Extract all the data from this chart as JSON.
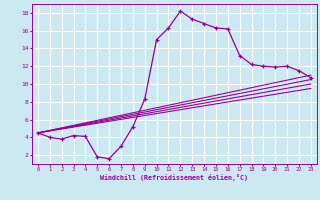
{
  "xlabel": "Windchill (Refroidissement éolien,°C)",
  "bg_color": "#cce8f0",
  "grid_color": "#ffffff",
  "line_color": "#990099",
  "xlim": [
    -0.5,
    23.5
  ],
  "ylim": [
    1,
    19
  ],
  "xticks": [
    0,
    1,
    2,
    3,
    4,
    5,
    6,
    7,
    8,
    9,
    10,
    11,
    12,
    13,
    14,
    15,
    16,
    17,
    18,
    19,
    20,
    21,
    22,
    23
  ],
  "yticks": [
    2,
    4,
    6,
    8,
    10,
    12,
    14,
    16,
    18
  ],
  "main_x": [
    0,
    1,
    2,
    3,
    4,
    5,
    6,
    7,
    8,
    9,
    10,
    11,
    12,
    13,
    14,
    15,
    16,
    17,
    18,
    19,
    20,
    21,
    22,
    23
  ],
  "main_y": [
    4.5,
    4.0,
    3.8,
    4.2,
    4.1,
    1.8,
    1.6,
    3.0,
    5.2,
    8.3,
    15.0,
    16.3,
    18.2,
    17.3,
    16.8,
    16.3,
    16.2,
    13.2,
    12.2,
    12.0,
    11.9,
    12.0,
    11.5,
    10.7
  ],
  "line2_x": [
    0,
    23
  ],
  "line2_y": [
    4.5,
    11.0
  ],
  "line3_x": [
    0,
    23
  ],
  "line3_y": [
    4.5,
    10.5
  ],
  "line4_x": [
    0,
    23
  ],
  "line4_y": [
    4.5,
    10.0
  ],
  "line5_x": [
    0,
    23
  ],
  "line5_y": [
    4.5,
    9.5
  ]
}
